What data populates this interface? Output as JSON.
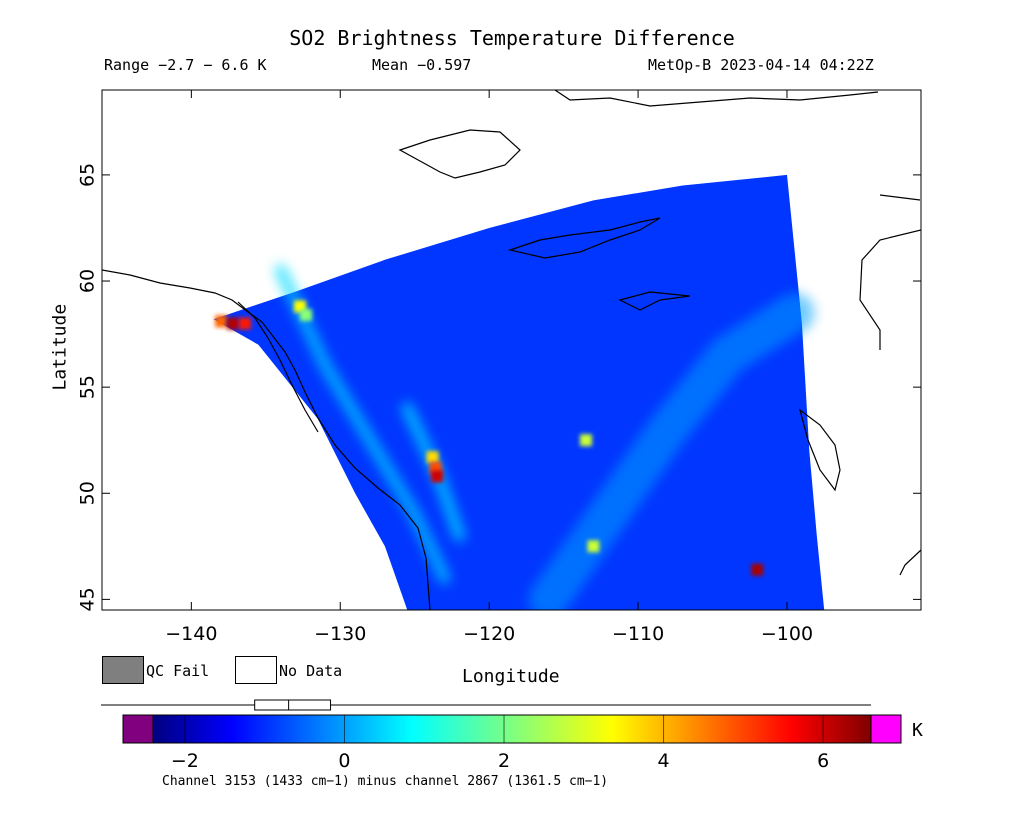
{
  "header": {
    "title": "SO2 Brightness Temperature Difference",
    "range": "Range −2.7 − 6.6 K",
    "mean": "Mean −0.597",
    "satellite": "MetOp-B 2023-04-14 04:22Z"
  },
  "legend": {
    "qc_fail": "QC Fail",
    "no_data": "No Data",
    "qc_fail_color": "#7f7f7f"
  },
  "colorbar": {
    "unit": "K",
    "ticks": [
      -2,
      0,
      2,
      4,
      6
    ],
    "tick_labels": [
      "−2",
      "0",
      "2",
      "4",
      "6"
    ],
    "min": -2.4,
    "max": 6.6,
    "under_color": "#800080",
    "over_color": "#ff00ff",
    "box_low": -1.0,
    "box_high": -0.3,
    "box_median": -0.7,
    "whisker_low": -2.7,
    "whisker_high": 6.6
  },
  "footer": {
    "channel_text": "Channel 3153 (1433 cm−1) minus channel 2867 (1361.5 cm−1)"
  },
  "chart_data": {
    "type": "heatmap",
    "title": "SO2 Brightness Temperature Difference",
    "xlabel": "Longitude",
    "ylabel": "Latitude",
    "xlim": [
      -146,
      -91
    ],
    "ylim": [
      44.5,
      69
    ],
    "x_ticks": [
      -140,
      -130,
      -120,
      -110,
      -100
    ],
    "x_tick_labels": [
      "−140",
      "−130",
      "−120",
      "−110",
      "−100"
    ],
    "y_ticks": [
      45,
      50,
      55,
      60,
      65
    ],
    "y_tick_labels": [
      "45",
      "50",
      "55",
      "60",
      "65"
    ],
    "value_unit": "K",
    "background_value": -0.6,
    "swath_edges": {
      "west": [
        [
          -138.5,
          58.2
        ],
        [
          -135.5,
          57.0
        ],
        [
          -131.5,
          53.5
        ],
        [
          -129.0,
          50.0
        ],
        [
          -127.0,
          47.5
        ],
        [
          -125.5,
          44.5
        ]
      ],
      "north": [
        [
          -138.5,
          58.2
        ],
        [
          -133.0,
          59.5
        ],
        [
          -127.0,
          61.0
        ],
        [
          -120.0,
          62.5
        ],
        [
          -113.0,
          63.8
        ],
        [
          -107.0,
          64.5
        ],
        [
          -100.0,
          65.0
        ]
      ],
      "east": [
        [
          -100.0,
          65.0
        ],
        [
          -99.0,
          58.0
        ],
        [
          -98.5,
          52.0
        ],
        [
          -98.0,
          48.0
        ],
        [
          -97.5,
          44.5
        ]
      ]
    },
    "features": [
      {
        "lon": -138.0,
        "lat": 58.1,
        "value": 4.8
      },
      {
        "lon": -137.2,
        "lat": 58.0,
        "value": 6.2
      },
      {
        "lon": -136.4,
        "lat": 58.0,
        "value": 5.5
      },
      {
        "lon": -132.7,
        "lat": 58.8,
        "value": 3.5
      },
      {
        "lon": -132.3,
        "lat": 58.4,
        "value": 2.4
      },
      {
        "lon": -123.8,
        "lat": 51.7,
        "value": 3.8
      },
      {
        "lon": -123.6,
        "lat": 51.2,
        "value": 5.0
      },
      {
        "lon": -123.5,
        "lat": 50.8,
        "value": 6.0
      },
      {
        "lon": -113.5,
        "lat": 52.5,
        "value": 3.0
      },
      {
        "lon": -113.0,
        "lat": 47.5,
        "value": 3.0
      },
      {
        "lon": -102.0,
        "lat": 46.4,
        "value": 6.3
      }
    ],
    "bright_bands": [
      {
        "path": [
          [
            -134.0,
            60.5
          ],
          [
            -131.0,
            56.0
          ],
          [
            -128.0,
            52.5
          ],
          [
            -125.0,
            49.0
          ],
          [
            -123.0,
            46.0
          ]
        ],
        "value": 0.8
      },
      {
        "path": [
          [
            -125.5,
            54.0
          ],
          [
            -123.5,
            51.0
          ],
          [
            -122.0,
            48.0
          ]
        ],
        "value": 0.9
      },
      {
        "path": [
          [
            -116.0,
            45.0
          ],
          [
            -112.0,
            49.0
          ],
          [
            -108.0,
            53.0
          ],
          [
            -104.0,
            56.5
          ],
          [
            -99.5,
            58.5
          ]
        ],
        "value": 0.3
      }
    ]
  }
}
